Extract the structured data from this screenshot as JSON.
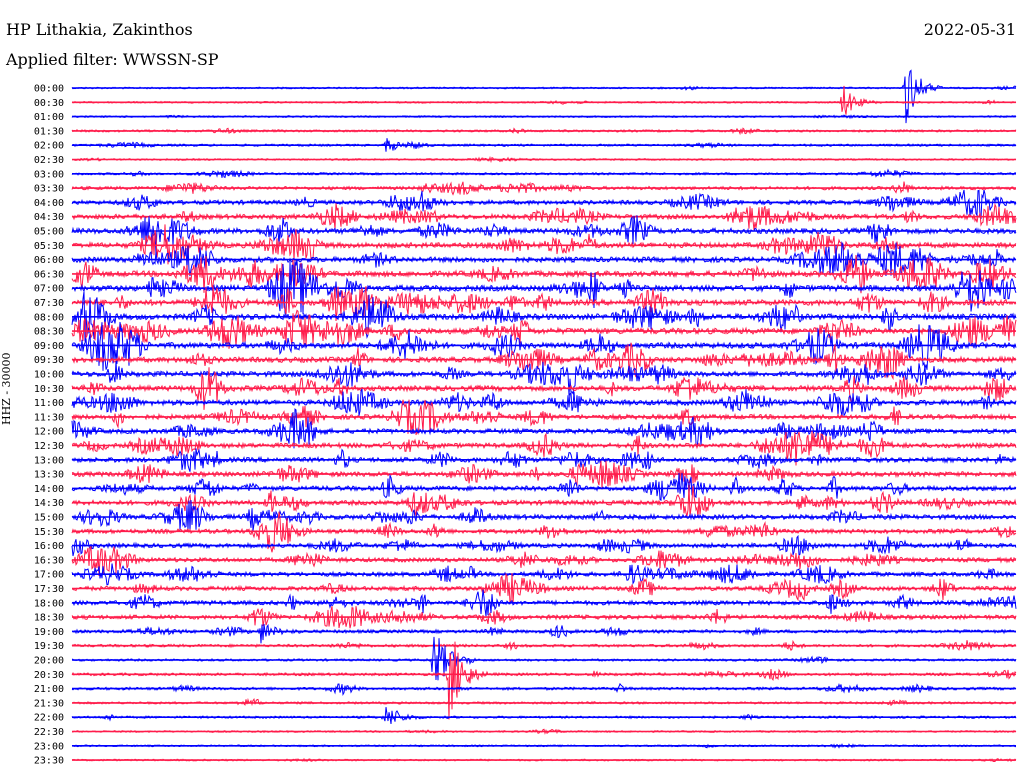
{
  "header": {
    "station": "HP Lithakia, Zakinthos",
    "filter": "Applied filter: WWSSN-SP",
    "date": "2022-05-31",
    "ylabel": "HHZ - 30000"
  },
  "chart_data": {
    "type": "line",
    "title": "HP Lithakia, Zakinthos",
    "subtitle": "Applied filter: WWSSN-SP",
    "date": "2022-05-31",
    "ylabel": "HHZ - 30000",
    "colors": [
      "#0000ff",
      "#ff1b4a"
    ],
    "row_labels": [
      "00:00",
      "00:30",
      "01:00",
      "01:30",
      "02:00",
      "02:30",
      "03:00",
      "03:30",
      "04:00",
      "04:30",
      "05:00",
      "05:30",
      "06:00",
      "06:30",
      "07:00",
      "07:30",
      "08:00",
      "08:30",
      "09:00",
      "09:30",
      "10:00",
      "10:30",
      "11:00",
      "11:30",
      "12:00",
      "12:30",
      "13:00",
      "13:30",
      "14:00",
      "14:30",
      "15:00",
      "15:30",
      "16:00",
      "16:30",
      "17:00",
      "17:30",
      "18:00",
      "18:30",
      "19:00",
      "19:30",
      "20:00",
      "20:30",
      "21:00",
      "21:30",
      "22:00",
      "22:30",
      "23:00",
      "23:30"
    ],
    "noise_level": [
      1,
      1,
      1,
      2,
      2,
      1,
      2,
      4,
      6,
      7,
      8,
      8,
      8,
      9,
      9,
      9,
      9,
      9,
      9,
      8,
      8,
      8,
      8,
      7,
      7,
      7,
      7,
      7,
      7,
      7,
      7,
      6,
      6,
      6,
      6,
      6,
      6,
      6,
      4,
      3,
      2,
      3,
      3,
      2,
      2,
      1,
      1,
      1
    ],
    "events": [
      {
        "row": "00:00",
        "minute": 26.5,
        "amplitude": 40
      },
      {
        "row": "00:30",
        "minute": 24.5,
        "amplitude": 18
      },
      {
        "row": "02:00",
        "minute": 10.0,
        "amplitude": 8
      },
      {
        "row": "04:00",
        "minute": 11.0,
        "amplitude": 14
      },
      {
        "row": "20:00",
        "minute": 11.5,
        "amplitude": 35
      },
      {
        "row": "20:30",
        "minute": 12.0,
        "amplitude": 55
      },
      {
        "row": "22:00",
        "minute": 10.0,
        "amplitude": 12
      },
      {
        "row": "18:00",
        "minute": 24.0,
        "amplitude": 14
      },
      {
        "row": "19:00",
        "minute": 6.0,
        "amplitude": 12
      }
    ]
  }
}
